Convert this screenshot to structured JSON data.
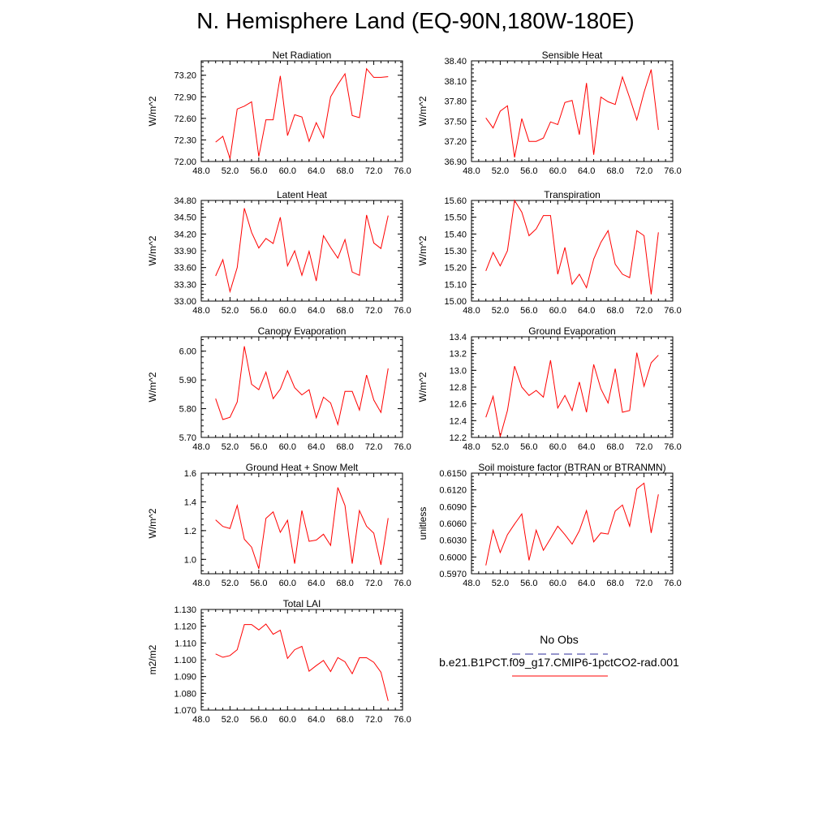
{
  "title": "N. Hemisphere Land (EQ-90N,180W-180E)",
  "legend": {
    "obs_label": "No Obs",
    "model_label": "b.e21.B1PCT.f09_g17.CMIP6-1pctCO2-rad.001",
    "obs_color": "#2b2b9a",
    "model_color": "#ff0000"
  },
  "chart_data": [
    {
      "type": "line",
      "title": "Net Radiation",
      "ylabel": "W/m^2",
      "xlim": [
        48,
        76
      ],
      "ylim": [
        72.0,
        73.4
      ],
      "x_ticks": [
        "48.0",
        "52.0",
        "56.0",
        "60.0",
        "64.0",
        "68.0",
        "72.0",
        "76.0"
      ],
      "y_ticks": [
        "72.00",
        "72.30",
        "72.60",
        "72.90",
        "73.20"
      ],
      "series": [
        {
          "x": [
            50,
            51,
            52,
            53,
            54,
            55,
            56,
            57,
            58,
            59,
            60,
            61,
            62,
            63,
            64,
            65,
            66,
            67,
            68,
            69,
            70,
            71,
            72,
            73,
            74
          ],
          "values": [
            72.27,
            72.35,
            72.04,
            72.73,
            72.77,
            72.83,
            72.07,
            72.58,
            72.58,
            73.19,
            72.36,
            72.65,
            72.62,
            72.28,
            72.54,
            72.33,
            72.9,
            73.07,
            73.22,
            72.64,
            72.61,
            73.29,
            73.17,
            73.17,
            73.18
          ]
        }
      ]
    },
    {
      "type": "line",
      "title": "Sensible Heat",
      "ylabel": "W/m^2",
      "xlim": [
        48,
        76
      ],
      "ylim": [
        36.9,
        38.4
      ],
      "x_ticks": [
        "48.0",
        "52.0",
        "56.0",
        "60.0",
        "64.0",
        "68.0",
        "72.0",
        "76.0"
      ],
      "y_ticks": [
        "36.90",
        "37.20",
        "37.50",
        "37.80",
        "38.10",
        "38.40"
      ],
      "series": [
        {
          "x": [
            50,
            51,
            52,
            53,
            54,
            55,
            56,
            57,
            58,
            59,
            60,
            61,
            62,
            63,
            64,
            65,
            66,
            67,
            68,
            69,
            70,
            71,
            72,
            73,
            74
          ],
          "values": [
            37.55,
            37.4,
            37.65,
            37.73,
            36.96,
            37.54,
            37.2,
            37.2,
            37.25,
            37.49,
            37.45,
            37.78,
            37.81,
            37.3,
            38.07,
            37.0,
            37.86,
            37.79,
            37.75,
            38.16,
            37.85,
            37.52,
            37.93,
            38.27,
            37.37
          ]
        }
      ]
    },
    {
      "type": "line",
      "title": "Latent Heat",
      "ylabel": "W/m^2",
      "xlim": [
        48,
        76
      ],
      "ylim": [
        33.0,
        34.8
      ],
      "x_ticks": [
        "48.0",
        "52.0",
        "56.0",
        "60.0",
        "64.0",
        "68.0",
        "72.0",
        "76.0"
      ],
      "y_ticks": [
        "33.00",
        "33.30",
        "33.60",
        "33.90",
        "34.20",
        "34.50",
        "34.80"
      ],
      "series": [
        {
          "x": [
            50,
            51,
            52,
            53,
            54,
            55,
            56,
            57,
            58,
            59,
            60,
            61,
            62,
            63,
            64,
            65,
            66,
            67,
            68,
            69,
            70,
            71,
            72,
            73,
            74
          ],
          "values": [
            33.45,
            33.74,
            33.17,
            33.6,
            34.66,
            34.23,
            33.95,
            34.12,
            34.03,
            34.5,
            33.63,
            33.9,
            33.46,
            33.89,
            33.36,
            34.17,
            33.96,
            33.77,
            34.1,
            33.52,
            33.46,
            34.54,
            34.04,
            33.94,
            34.53
          ]
        }
      ]
    },
    {
      "type": "line",
      "title": "Transpiration",
      "ylabel": "W/m^2",
      "xlim": [
        48,
        76
      ],
      "ylim": [
        15.0,
        15.6
      ],
      "x_ticks": [
        "48.0",
        "52.0",
        "56.0",
        "60.0",
        "64.0",
        "68.0",
        "72.0",
        "76.0"
      ],
      "y_ticks": [
        "15.00",
        "15.10",
        "15.20",
        "15.30",
        "15.40",
        "15.50",
        "15.60"
      ],
      "series": [
        {
          "x": [
            50,
            51,
            52,
            53,
            54,
            55,
            56,
            57,
            58,
            59,
            60,
            61,
            62,
            63,
            64,
            65,
            66,
            67,
            68,
            69,
            70,
            71,
            72,
            73,
            74
          ],
          "values": [
            15.18,
            15.29,
            15.21,
            15.3,
            15.6,
            15.53,
            15.39,
            15.43,
            15.51,
            15.51,
            15.16,
            15.32,
            15.1,
            15.16,
            15.08,
            15.25,
            15.35,
            15.42,
            15.22,
            15.16,
            15.14,
            15.42,
            15.39,
            15.04,
            15.41
          ]
        }
      ]
    },
    {
      "type": "line",
      "title": "Canopy Evaporation",
      "ylabel": "W/m^2",
      "xlim": [
        48,
        76
      ],
      "ylim": [
        5.7,
        6.05
      ],
      "x_ticks": [
        "48.0",
        "52.0",
        "56.0",
        "60.0",
        "64.0",
        "68.0",
        "72.0",
        "76.0"
      ],
      "y_ticks": [
        "5.70",
        "5.80",
        "5.90",
        "6.00"
      ],
      "series": [
        {
          "x": [
            50,
            51,
            52,
            53,
            54,
            55,
            56,
            57,
            58,
            59,
            60,
            61,
            62,
            63,
            64,
            65,
            66,
            67,
            68,
            69,
            70,
            71,
            72,
            73,
            74
          ],
          "values": [
            5.835,
            5.762,
            5.77,
            5.823,
            6.017,
            5.885,
            5.866,
            5.927,
            5.835,
            5.868,
            5.932,
            5.873,
            5.848,
            5.866,
            5.768,
            5.84,
            5.82,
            5.745,
            5.86,
            5.86,
            5.795,
            5.917,
            5.83,
            5.787,
            5.94
          ]
        }
      ]
    },
    {
      "type": "line",
      "title": "Ground Evaporation",
      "ylabel": "W/m^2",
      "xlim": [
        48,
        76
      ],
      "ylim": [
        12.2,
        13.4
      ],
      "x_ticks": [
        "48.0",
        "52.0",
        "56.0",
        "60.0",
        "64.0",
        "68.0",
        "72.0",
        "76.0"
      ],
      "y_ticks": [
        "12.2",
        "12.4",
        "12.6",
        "12.8",
        "13.0",
        "13.2",
        "13.4"
      ],
      "series": [
        {
          "x": [
            50,
            51,
            52,
            53,
            54,
            55,
            56,
            57,
            58,
            59,
            60,
            61,
            62,
            63,
            64,
            65,
            66,
            67,
            68,
            69,
            70,
            71,
            72,
            73,
            74
          ],
          "values": [
            12.44,
            12.69,
            12.21,
            12.52,
            13.05,
            12.8,
            12.7,
            12.76,
            12.68,
            13.12,
            12.55,
            12.7,
            12.52,
            12.86,
            12.5,
            13.07,
            12.78,
            12.61,
            13.02,
            12.5,
            12.52,
            13.21,
            12.81,
            13.09,
            13.18
          ]
        }
      ]
    },
    {
      "type": "line",
      "title": "Ground Heat + Snow Melt",
      "ylabel": "W/m^2",
      "xlim": [
        48,
        76
      ],
      "ylim": [
        0.9,
        1.6
      ],
      "x_ticks": [
        "48.0",
        "52.0",
        "56.0",
        "60.0",
        "64.0",
        "68.0",
        "72.0",
        "76.0"
      ],
      "y_ticks": [
        "1.0",
        "1.2",
        "1.4",
        "1.6"
      ],
      "series": [
        {
          "x": [
            50,
            51,
            52,
            53,
            54,
            55,
            56,
            57,
            58,
            59,
            60,
            61,
            62,
            63,
            64,
            65,
            66,
            67,
            68,
            69,
            70,
            71,
            72,
            73,
            74
          ],
          "values": [
            1.275,
            1.229,
            1.215,
            1.375,
            1.14,
            1.085,
            0.935,
            1.285,
            1.33,
            1.188,
            1.272,
            0.97,
            1.34,
            1.126,
            1.134,
            1.175,
            1.097,
            1.5,
            1.375,
            0.97,
            1.34,
            1.23,
            1.182,
            0.962,
            1.287
          ]
        }
      ]
    },
    {
      "type": "line",
      "title": "Soil moisture factor (BTRAN or BTRANMN)",
      "ylabel": "unitless",
      "xlim": [
        48,
        76
      ],
      "ylim": [
        0.597,
        0.615
      ],
      "x_ticks": [
        "48.0",
        "52.0",
        "56.0",
        "60.0",
        "64.0",
        "68.0",
        "72.0",
        "76.0"
      ],
      "y_ticks": [
        "0.5970",
        "0.6000",
        "0.6030",
        "0.6060",
        "0.6090",
        "0.6120",
        "0.6150"
      ],
      "series": [
        {
          "x": [
            50,
            51,
            52,
            53,
            54,
            55,
            56,
            57,
            58,
            59,
            60,
            61,
            62,
            63,
            64,
            65,
            66,
            67,
            68,
            69,
            70,
            71,
            72,
            73,
            74
          ],
          "values": [
            0.5985,
            0.6048,
            0.6008,
            0.604,
            0.6059,
            0.6077,
            0.5994,
            0.6048,
            0.6012,
            0.6033,
            0.6055,
            0.604,
            0.6023,
            0.6047,
            0.6083,
            0.6027,
            0.6043,
            0.6041,
            0.6082,
            0.6093,
            0.6055,
            0.6122,
            0.6132,
            0.6043,
            0.6112
          ]
        }
      ]
    },
    {
      "type": "line",
      "title": "Total LAI",
      "ylabel": "m2/m2",
      "xlim": [
        48,
        76
      ],
      "ylim": [
        1.07,
        1.13
      ],
      "x_ticks": [
        "48.0",
        "52.0",
        "56.0",
        "60.0",
        "64.0",
        "68.0",
        "72.0",
        "76.0"
      ],
      "y_ticks": [
        "1.070",
        "1.080",
        "1.090",
        "1.100",
        "1.110",
        "1.120",
        "1.130"
      ],
      "series": [
        {
          "x": [
            50,
            51,
            52,
            53,
            54,
            55,
            56,
            57,
            58,
            59,
            60,
            61,
            62,
            63,
            64,
            65,
            66,
            67,
            68,
            69,
            70,
            71,
            72,
            73,
            74
          ],
          "values": [
            1.1035,
            1.1015,
            1.1025,
            1.106,
            1.121,
            1.121,
            1.1178,
            1.1213,
            1.1152,
            1.1176,
            1.1008,
            1.106,
            1.108,
            1.0932,
            1.0965,
            1.0996,
            1.093,
            1.1013,
            1.0988,
            1.0917,
            1.1012,
            1.1012,
            1.0985,
            1.0926,
            1.0755
          ]
        }
      ]
    }
  ]
}
